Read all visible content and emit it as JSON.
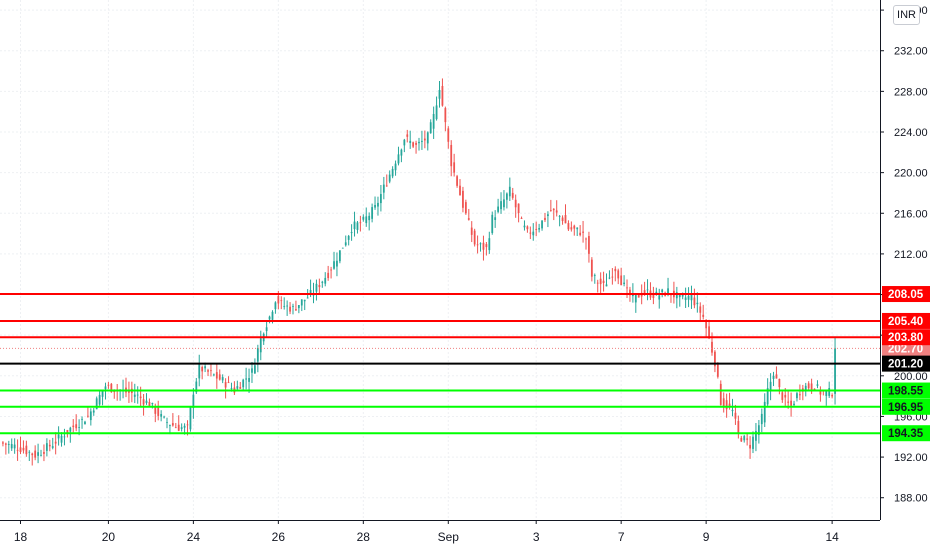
{
  "currency_button": "INR",
  "chart_data": {
    "type": "candlestick",
    "title": "",
    "xlabel": "",
    "ylabel": "",
    "ylim": [
      186.2,
      236.6
    ],
    "y_ticks": [
      "236.00",
      "232.00",
      "228.00",
      "224.00",
      "220.00",
      "216.00",
      "212.00",
      "208.00",
      "204.00",
      "200.00",
      "196.00",
      "192.00",
      "188.00"
    ],
    "x_ticks": [
      "18",
      "20",
      "24",
      "26",
      "28",
      "Sep",
      "3",
      "7",
      "9",
      "14"
    ],
    "grid": true,
    "colors": {
      "up": "#26a69a",
      "down": "#ef5350",
      "resistance": "#ff0000",
      "support": "#00ff00",
      "pivot": "#000000",
      "last_price": "#f08080"
    },
    "levels": [
      {
        "label": "208.05",
        "value": 208.05,
        "kind": "resistance"
      },
      {
        "label": "205.40",
        "value": 205.4,
        "kind": "resistance"
      },
      {
        "label": "203.80",
        "value": 203.8,
        "kind": "resistance"
      },
      {
        "label": "201.20",
        "value": 201.2,
        "kind": "pivot"
      },
      {
        "label": "198.55",
        "value": 198.55,
        "kind": "support"
      },
      {
        "label": "196.95",
        "value": 196.95,
        "kind": "support"
      },
      {
        "label": "194.35",
        "value": 194.35,
        "kind": "support"
      }
    ],
    "last_price": {
      "label": "202.70",
      "value": 202.7
    },
    "price_path": [
      [
        0,
        193.4
      ],
      [
        6,
        193.0
      ],
      [
        12,
        192.2
      ],
      [
        18,
        193.3
      ],
      [
        24,
        194.8
      ],
      [
        30,
        196.0
      ],
      [
        36,
        199.0
      ],
      [
        40,
        198.6
      ],
      [
        46,
        198.2
      ],
      [
        51,
        197.2
      ],
      [
        56,
        195.6
      ],
      [
        60,
        195.0
      ],
      [
        64,
        194.8
      ],
      [
        66,
        198.5
      ],
      [
        68,
        200.8
      ],
      [
        72,
        200.2
      ],
      [
        76,
        199.5
      ],
      [
        80,
        198.6
      ],
      [
        86,
        200.4
      ],
      [
        88,
        202.6
      ],
      [
        90,
        204.6
      ],
      [
        92,
        205.8
      ],
      [
        94,
        207.6
      ],
      [
        96,
        207.0
      ],
      [
        100,
        206.6
      ],
      [
        106,
        208.0
      ],
      [
        112,
        210.1
      ],
      [
        116,
        212.2
      ],
      [
        120,
        214.6
      ],
      [
        124,
        215.2
      ],
      [
        128,
        216.5
      ],
      [
        134,
        220.5
      ],
      [
        138,
        223.4
      ],
      [
        142,
        222.6
      ],
      [
        146,
        223.5
      ],
      [
        148,
        225.5
      ],
      [
        150,
        228.5
      ],
      [
        154,
        221.0
      ],
      [
        158,
        216.8
      ],
      [
        162,
        213.0
      ],
      [
        166,
        212.5
      ],
      [
        168,
        215.5
      ],
      [
        172,
        217.3
      ],
      [
        174,
        218.2
      ],
      [
        178,
        215.0
      ],
      [
        180,
        214.0
      ],
      [
        184,
        214.8
      ],
      [
        188,
        216.3
      ],
      [
        192,
        215.5
      ],
      [
        194,
        214.5
      ],
      [
        198,
        214.2
      ],
      [
        200,
        213.5
      ],
      [
        202,
        209.8
      ],
      [
        206,
        208.8
      ],
      [
        210,
        210.6
      ],
      [
        214,
        208.2
      ],
      [
        216,
        207.6
      ],
      [
        220,
        208.3
      ],
      [
        224,
        207.9
      ],
      [
        228,
        208.3
      ],
      [
        232,
        207.6
      ],
      [
        236,
        207.8
      ],
      [
        240,
        205.8
      ],
      [
        242,
        203.6
      ],
      [
        244,
        201.4
      ],
      [
        246,
        197.5
      ],
      [
        250,
        196.5
      ],
      [
        252,
        194.2
      ],
      [
        256,
        193.2
      ],
      [
        260,
        195.8
      ],
      [
        262,
        198.5
      ],
      [
        264,
        200.4
      ],
      [
        266,
        198.6
      ],
      [
        268,
        197.4
      ],
      [
        270,
        197.0
      ],
      [
        272,
        198.1
      ],
      [
        274,
        198.9
      ],
      [
        278,
        199.0
      ],
      [
        280,
        198.4
      ],
      [
        282,
        198.3
      ],
      [
        284,
        198.4
      ],
      [
        285,
        202.7
      ]
    ]
  }
}
